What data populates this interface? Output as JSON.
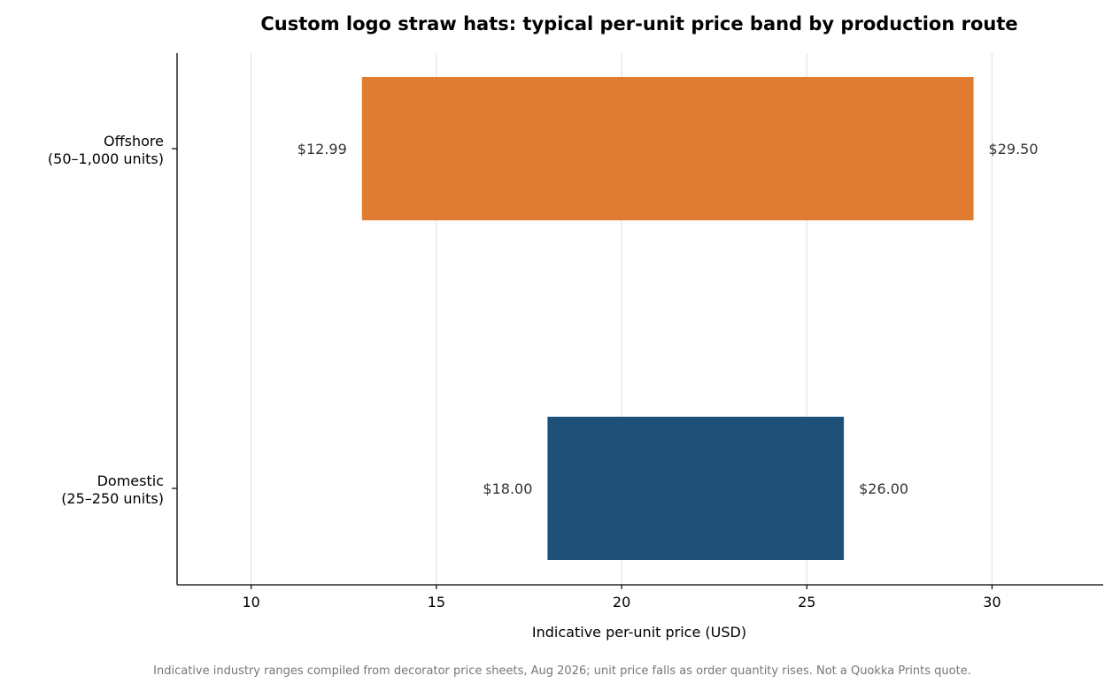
{
  "chart_data": {
    "type": "bar",
    "orientation": "horizontal-range",
    "title": "Custom logo straw hats: typical per-unit price band by production route",
    "xlabel": "Indicative per-unit price (USD)",
    "ylabel": "",
    "xlim": [
      8,
      33
    ],
    "xticks": [
      10,
      15,
      20,
      25,
      30
    ],
    "grid": "vertical",
    "bars": [
      {
        "label_lines": [
          "Offshore",
          "(50–1,000 units)"
        ],
        "low": 12.99,
        "high": 29.5,
        "low_label": "$12.99",
        "high_label": "$29.50",
        "color": "#E07B32"
      },
      {
        "label_lines": [
          "Domestic",
          "(25–250 units)"
        ],
        "low": 18.0,
        "high": 26.0,
        "low_label": "$18.00",
        "high_label": "$26.00",
        "color": "#1F5078"
      }
    ],
    "footnote": "Indicative industry ranges compiled from decorator price sheets, Aug 2026; unit price falls as order quantity rises. Not a Quokka Prints quote."
  }
}
